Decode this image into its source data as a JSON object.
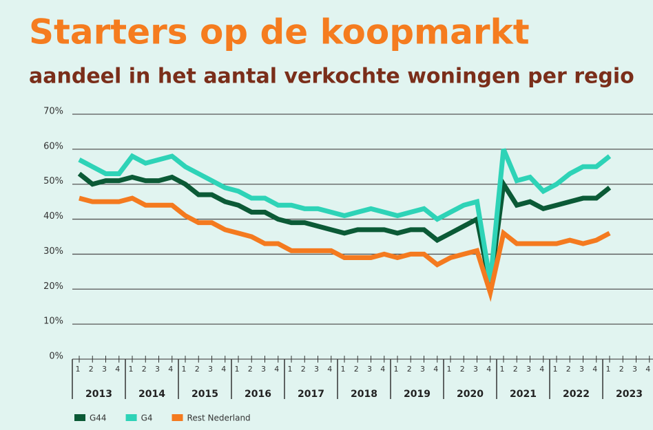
{
  "chart_data": {
    "type": "line",
    "title": "Starters op de koopmarkt",
    "subtitle": "aandeel in het aantal verkochte woningen per regio",
    "categories": [
      "1",
      "2",
      "3",
      "4",
      "1",
      "2",
      "3",
      "4",
      "1",
      "2",
      "3",
      "4",
      "1",
      "2",
      "3",
      "4",
      "1",
      "2",
      "3",
      "4",
      "1",
      "2",
      "3",
      "4",
      "1",
      "2",
      "3",
      "4",
      "1",
      "2",
      "3",
      "4",
      "1",
      "2",
      "3",
      "4",
      "1",
      "2",
      "3",
      "4",
      "1",
      "2",
      "3",
      "4"
    ],
    "year_groups": [
      "2013",
      "2014",
      "2015",
      "2016",
      "2017",
      "2018",
      "2019",
      "2020",
      "2021",
      "2022",
      "2023"
    ],
    "ylim": [
      0,
      70
    ],
    "yticks": [
      {
        "value": 0,
        "label": "0%"
      },
      {
        "value": 10,
        "label": "10%"
      },
      {
        "value": 20,
        "label": "20%"
      },
      {
        "value": 30,
        "label": "30%"
      },
      {
        "value": 40,
        "label": "40%"
      },
      {
        "value": 50,
        "label": "50%"
      },
      {
        "value": 60,
        "label": "60%"
      },
      {
        "value": 70,
        "label": "70%"
      }
    ],
    "grid": true,
    "legend": "bottom-left",
    "series": [
      {
        "name": "G44",
        "color": "#0b5a36",
        "values": [
          53,
          50,
          51,
          51,
          52,
          51,
          51,
          52,
          50,
          47,
          47,
          45,
          44,
          42,
          42,
          40,
          39,
          39,
          38,
          37,
          36,
          37,
          37,
          37,
          36,
          37,
          37,
          34,
          36,
          38,
          40,
          21,
          50,
          44,
          45,
          43,
          44,
          45,
          46,
          46,
          49,
          null,
          null,
          null
        ]
      },
      {
        "name": "G4",
        "color": "#2ed3b7",
        "values": [
          57,
          55,
          53,
          53,
          58,
          56,
          57,
          58,
          55,
          53,
          51,
          49,
          48,
          46,
          46,
          44,
          44,
          43,
          43,
          42,
          41,
          42,
          43,
          42,
          41,
          42,
          43,
          40,
          42,
          44,
          45,
          22,
          60,
          51,
          52,
          48,
          50,
          53,
          55,
          55,
          58,
          null,
          null,
          null
        ]
      },
      {
        "name": "Rest Nederland",
        "color": "#f47a1f",
        "values": [
          46,
          45,
          45,
          45,
          46,
          44,
          44,
          44,
          41,
          39,
          39,
          37,
          36,
          35,
          33,
          33,
          31,
          31,
          31,
          31,
          29,
          29,
          29,
          30,
          29,
          30,
          30,
          27,
          29,
          30,
          31,
          19,
          36,
          33,
          33,
          33,
          33,
          34,
          33,
          34,
          36,
          null,
          null,
          null
        ]
      }
    ]
  }
}
